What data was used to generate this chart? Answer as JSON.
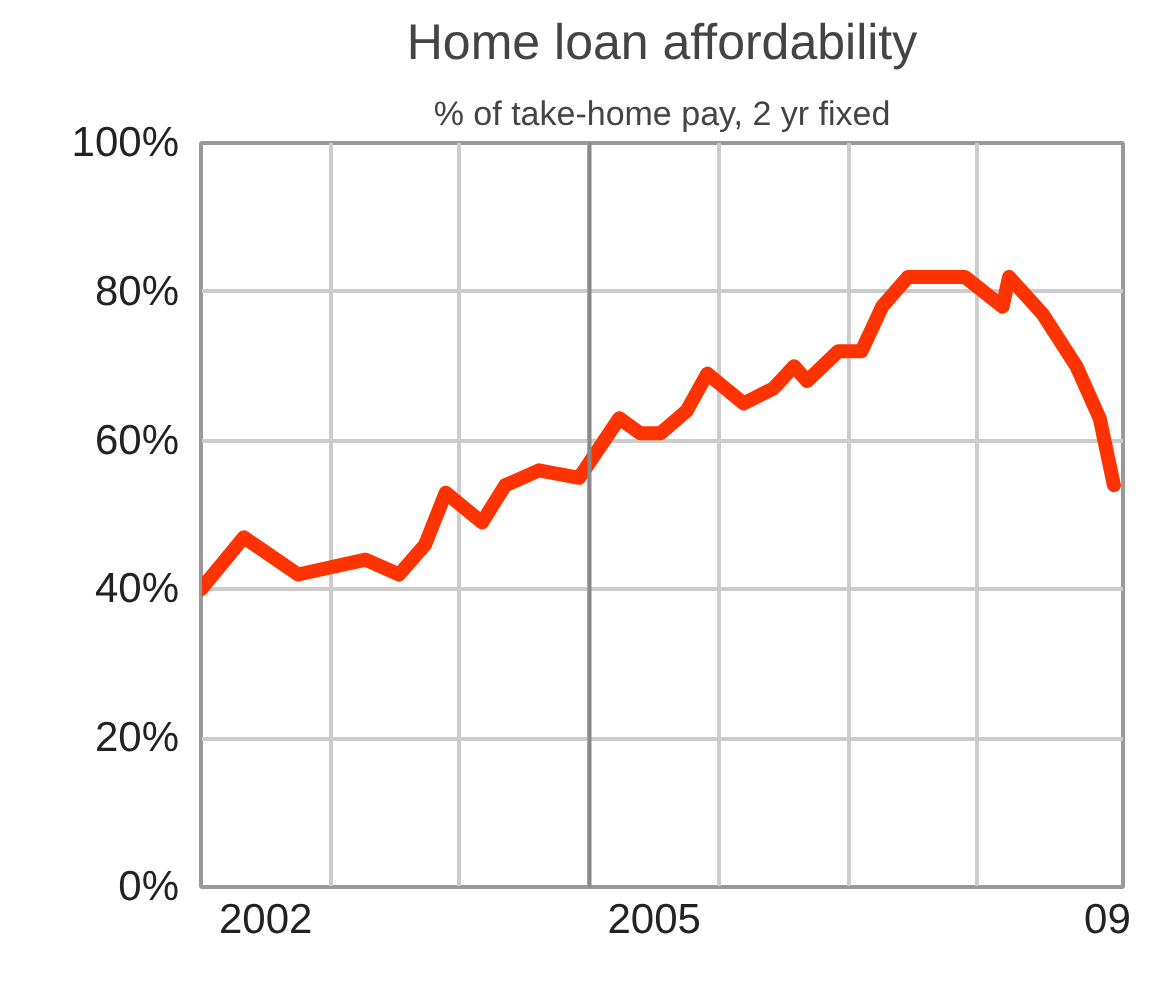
{
  "chart_data": {
    "type": "line",
    "title": "Home loan affordability",
    "subtitle": "% of take-home pay, 2 yr fixed",
    "x": [
      2002.0,
      2002.33,
      2002.75,
      2003.27,
      2003.53,
      2003.73,
      2003.89,
      2004.17,
      2004.35,
      2004.61,
      2004.92,
      2005.23,
      2005.39,
      2005.55,
      2005.75,
      2005.91,
      2006.19,
      2006.42,
      2006.58,
      2006.68,
      2006.92,
      2007.1,
      2007.26,
      2007.46,
      2007.67,
      2007.9,
      2008.19,
      2008.24,
      2008.5,
      2008.76,
      2008.94,
      2009.05
    ],
    "series": [
      {
        "color": "#ff3300",
        "values": [
          40,
          47,
          42,
          44,
          42,
          46,
          53,
          49,
          54,
          56,
          55,
          63,
          61,
          61,
          64,
          69,
          65,
          67,
          70,
          68,
          72,
          72,
          78,
          82,
          82,
          82,
          78,
          82,
          77,
          70,
          63,
          54
        ]
      }
    ],
    "xlim": [
      2002,
      2009.12
    ],
    "ylim": [
      0,
      100
    ],
    "xticks": [
      {
        "value": 2002.5,
        "label": "2002"
      },
      {
        "value": 2003,
        "label": null
      },
      {
        "value": 2004,
        "label": null
      },
      {
        "value": 2005,
        "label": null
      },
      {
        "value": 2005.5,
        "label": "2005"
      },
      {
        "value": 2006,
        "label": null
      },
      {
        "value": 2007,
        "label": null
      },
      {
        "value": 2008,
        "label": null
      },
      {
        "value": 2009,
        "label": "09"
      }
    ],
    "yticks": [
      {
        "value": 0,
        "label": "0%"
      },
      {
        "value": 20,
        "label": "20%"
      },
      {
        "value": 40,
        "label": "40%"
      },
      {
        "value": 60,
        "label": "60%"
      },
      {
        "value": 80,
        "label": "80%"
      },
      {
        "value": 100,
        "label": "100%"
      }
    ],
    "ref_lines": [
      {
        "axis": "x",
        "value": 2005,
        "label": null,
        "color": "#888888"
      }
    ],
    "grid": true,
    "marker": "none",
    "line_style": "solid"
  }
}
